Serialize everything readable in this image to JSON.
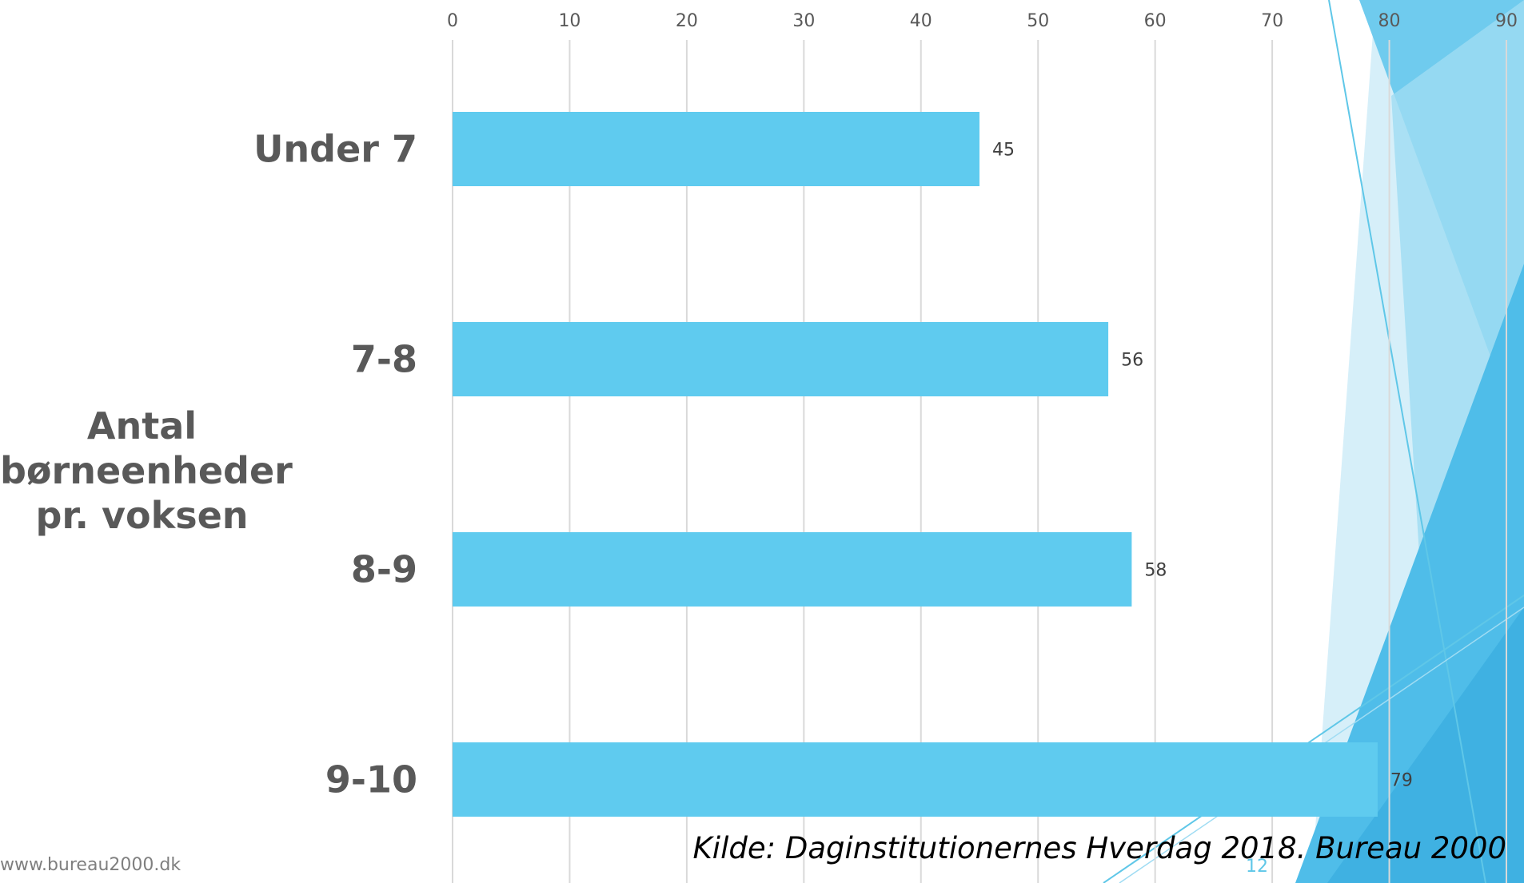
{
  "slide": {
    "source": "Kilde: Daginstitutionernes Hverdag 2018. Bureau 2000",
    "website": "www.bureau2000.dk",
    "page_number": "12"
  },
  "chart_data": {
    "type": "bar",
    "orientation": "horizontal",
    "categories": [
      "Under 7",
      "7-8",
      "8-9",
      "9-10"
    ],
    "values": [
      45,
      56,
      58,
      79
    ],
    "title": "",
    "xlabel": "",
    "ylabel": "Antal\nbørneenheder\npr. voksen",
    "xlim": [
      0,
      90
    ],
    "xticks": [
      0,
      10,
      20,
      30,
      40,
      50,
      60,
      70,
      80,
      90
    ],
    "data_labels": true,
    "grid": true,
    "legend": "none",
    "colors": {
      "bar": "#5fcbef",
      "grid": "#d9d9d9",
      "tick_text": "#595959"
    }
  },
  "theme": {
    "accent_dark": "#40b4e4",
    "accent_mid": "#7dd0ef",
    "accent_light": "#bde6f6"
  }
}
